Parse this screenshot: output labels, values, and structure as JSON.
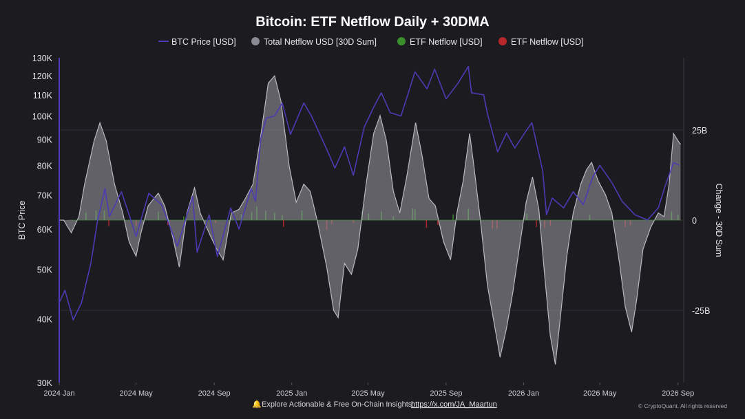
{
  "chart_data": {
    "type": "line",
    "title": "Bitcoin: ETF Netflow Daily + 30DMA",
    "legend": [
      {
        "name": "BTC Price [USD]",
        "color": "#4b3bb5",
        "marker": "line"
      },
      {
        "name": "Total Netflow USD [30D Sum]",
        "color": "#8a8a93",
        "marker": "dot"
      },
      {
        "name": "ETF Netflow [USD]",
        "color": "#3a8f2c",
        "marker": "dot"
      },
      {
        "name": "ETF Netflow [USD]",
        "color": "#b8272b",
        "marker": "dot"
      }
    ],
    "legend_position": "top-center",
    "y_left": {
      "label": "BTC Price",
      "scale": "log",
      "range": [
        30000,
        130000
      ],
      "ticks": [
        30000,
        40000,
        50000,
        60000,
        70000,
        80000,
        90000,
        100000,
        110000,
        120000,
        130000
      ],
      "tick_labels": [
        "30K",
        "40K",
        "50K",
        "60K",
        "70K",
        "80K",
        "90K",
        "100K",
        "110K",
        "120K",
        "130K"
      ]
    },
    "y_right": {
      "label": "Change - 30D Sum",
      "unit": "billion USD",
      "range": [
        -45,
        45
      ],
      "ticks": [
        25,
        0,
        -25
      ],
      "tick_labels": [
        "25B",
        "0",
        "-25B"
      ]
    },
    "x_axis": {
      "range": [
        "2024-01-01",
        "2026-09-10"
      ],
      "tick_labels": [
        "2024 Jan",
        "2024 May",
        "2024 Sep",
        "2025 Jan",
        "2025 May",
        "2025 Sep",
        "2026 Jan",
        "2026 May",
        "2026 Sep"
      ],
      "tick_dates": [
        "2024-01-01",
        "2024-05-01",
        "2024-09-01",
        "2025-01-01",
        "2025-05-01",
        "2025-09-01",
        "2026-01-01",
        "2026-05-01",
        "2026-09-01"
      ]
    },
    "grid": "horizontal at 25B, 0, -25B",
    "series": [
      {
        "name": "BTC Price [USD]",
        "axis": "left",
        "points": [
          [
            "2024-01-01",
            43000
          ],
          [
            "2024-01-10",
            45500
          ],
          [
            "2024-01-23",
            39800
          ],
          [
            "2024-02-05",
            43000
          ],
          [
            "2024-02-20",
            51500
          ],
          [
            "2024-03-01",
            62000
          ],
          [
            "2024-03-13",
            72000
          ],
          [
            "2024-03-20",
            63500
          ],
          [
            "2024-04-08",
            71000
          ],
          [
            "2024-04-20",
            64000
          ],
          [
            "2024-05-01",
            58000
          ],
          [
            "2024-05-21",
            70500
          ],
          [
            "2024-06-10",
            67000
          ],
          [
            "2024-07-05",
            55500
          ],
          [
            "2024-07-29",
            69500
          ],
          [
            "2024-08-05",
            54000
          ],
          [
            "2024-08-24",
            64000
          ],
          [
            "2024-09-06",
            53000
          ],
          [
            "2024-09-27",
            66000
          ],
          [
            "2024-10-10",
            60000
          ],
          [
            "2024-10-29",
            72000
          ],
          [
            "2024-11-05",
            68000
          ],
          [
            "2024-11-13",
            90000
          ],
          [
            "2024-11-22",
            99000
          ],
          [
            "2024-12-05",
            100000
          ],
          [
            "2024-12-17",
            106000
          ],
          [
            "2024-12-30",
            92000
          ],
          [
            "2025-01-20",
            106000
          ],
          [
            "2025-02-01",
            100000
          ],
          [
            "2025-02-25",
            86000
          ],
          [
            "2025-03-10",
            79000
          ],
          [
            "2025-03-25",
            87000
          ],
          [
            "2025-04-08",
            76500
          ],
          [
            "2025-04-25",
            95000
          ],
          [
            "2025-05-10",
            104000
          ],
          [
            "2025-05-22",
            111000
          ],
          [
            "2025-06-05",
            101500
          ],
          [
            "2025-06-22",
            100000
          ],
          [
            "2025-07-14",
            122000
          ],
          [
            "2025-08-02",
            113000
          ],
          [
            "2025-08-14",
            123500
          ],
          [
            "2025-09-01",
            108000
          ],
          [
            "2025-09-20",
            116000
          ],
          [
            "2025-10-06",
            125000
          ],
          [
            "2025-10-11",
            111000
          ],
          [
            "2025-10-30",
            110000
          ],
          [
            "2025-11-05",
            101000
          ],
          [
            "2025-11-21",
            85000
          ],
          [
            "2025-12-05",
            92500
          ],
          [
            "2025-12-18",
            86500
          ],
          [
            "2026-01-05",
            93500
          ],
          [
            "2026-01-14",
            97000
          ],
          [
            "2026-01-31",
            78000
          ],
          [
            "2026-02-06",
            64000
          ],
          [
            "2026-02-15",
            69000
          ],
          [
            "2026-03-05",
            66000
          ],
          [
            "2026-03-20",
            71000
          ],
          [
            "2026-04-05",
            67000
          ],
          [
            "2026-04-20",
            76000
          ],
          [
            "2026-05-01",
            80000
          ],
          [
            "2026-05-20",
            74000
          ],
          [
            "2026-06-05",
            68000
          ],
          [
            "2026-06-25",
            64000
          ],
          [
            "2026-07-15",
            62500
          ],
          [
            "2026-08-01",
            66000
          ],
          [
            "2026-08-12",
            73000
          ],
          [
            "2026-08-25",
            81000
          ],
          [
            "2026-09-03",
            80000
          ]
        ]
      },
      {
        "name": "Total Netflow USD [30D Sum]",
        "axis": "right",
        "unit": "billion USD",
        "points": [
          [
            "2024-01-01",
            0
          ],
          [
            "2024-01-08",
            0
          ],
          [
            "2024-01-20",
            -3.5
          ],
          [
            "2024-02-01",
            1
          ],
          [
            "2024-02-10",
            10
          ],
          [
            "2024-02-25",
            22
          ],
          [
            "2024-03-05",
            27
          ],
          [
            "2024-03-15",
            22
          ],
          [
            "2024-03-28",
            10
          ],
          [
            "2024-04-10",
            2
          ],
          [
            "2024-04-20",
            -6
          ],
          [
            "2024-05-01",
            -10
          ],
          [
            "2024-05-08",
            -4
          ],
          [
            "2024-05-20",
            4
          ],
          [
            "2024-06-05",
            7.5
          ],
          [
            "2024-06-15",
            4
          ],
          [
            "2024-06-28",
            -5
          ],
          [
            "2024-07-08",
            -13
          ],
          [
            "2024-07-20",
            2
          ],
          [
            "2024-08-01",
            9
          ],
          [
            "2024-08-10",
            2
          ],
          [
            "2024-08-25",
            -4
          ],
          [
            "2024-09-05",
            -8
          ],
          [
            "2024-09-15",
            -11
          ],
          [
            "2024-09-28",
            2
          ],
          [
            "2024-10-10",
            3
          ],
          [
            "2024-10-20",
            6
          ],
          [
            "2024-11-01",
            10
          ],
          [
            "2024-11-12",
            22
          ],
          [
            "2024-11-25",
            38
          ],
          [
            "2024-12-05",
            40
          ],
          [
            "2024-12-15",
            33
          ],
          [
            "2024-12-28",
            15
          ],
          [
            "2025-01-08",
            5
          ],
          [
            "2025-01-20",
            10
          ],
          [
            "2025-01-30",
            8
          ],
          [
            "2025-02-10",
            0
          ],
          [
            "2025-02-25",
            -13
          ],
          [
            "2025-03-08",
            -25
          ],
          [
            "2025-03-15",
            -27
          ],
          [
            "2025-03-25",
            -12
          ],
          [
            "2025-04-05",
            -15
          ],
          [
            "2025-04-15",
            -8
          ],
          [
            "2025-04-28",
            10
          ],
          [
            "2025-05-10",
            24
          ],
          [
            "2025-05-20",
            29
          ],
          [
            "2025-05-30",
            22
          ],
          [
            "2025-06-10",
            8
          ],
          [
            "2025-06-20",
            2
          ],
          [
            "2025-07-01",
            12
          ],
          [
            "2025-07-15",
            27
          ],
          [
            "2025-07-25",
            18
          ],
          [
            "2025-08-05",
            6
          ],
          [
            "2025-08-15",
            4
          ],
          [
            "2025-08-28",
            -6
          ],
          [
            "2025-09-08",
            -11
          ],
          [
            "2025-09-18",
            2
          ],
          [
            "2025-09-28",
            11
          ],
          [
            "2025-10-08",
            24
          ],
          [
            "2025-10-14",
            16
          ],
          [
            "2025-10-25",
            0
          ],
          [
            "2025-11-05",
            -18
          ],
          [
            "2025-11-18",
            -31
          ],
          [
            "2025-11-25",
            -38
          ],
          [
            "2025-12-05",
            -30
          ],
          [
            "2025-12-15",
            -20
          ],
          [
            "2025-12-25",
            -8
          ],
          [
            "2026-01-05",
            5
          ],
          [
            "2026-01-15",
            12
          ],
          [
            "2026-01-25",
            3
          ],
          [
            "2026-02-03",
            -15
          ],
          [
            "2026-02-12",
            -32
          ],
          [
            "2026-02-20",
            -40
          ],
          [
            "2026-03-01",
            -25
          ],
          [
            "2026-03-10",
            -10
          ],
          [
            "2026-03-20",
            2
          ],
          [
            "2026-04-01",
            10
          ],
          [
            "2026-04-10",
            14
          ],
          [
            "2026-04-18",
            16
          ],
          [
            "2026-04-28",
            11
          ],
          [
            "2026-05-10",
            7
          ],
          [
            "2026-05-20",
            2
          ],
          [
            "2026-06-01",
            -12
          ],
          [
            "2026-06-10",
            -24
          ],
          [
            "2026-06-20",
            -31
          ],
          [
            "2026-06-28",
            -22
          ],
          [
            "2026-07-08",
            -8
          ],
          [
            "2026-07-20",
            -2
          ],
          [
            "2026-08-01",
            2
          ],
          [
            "2026-08-10",
            1
          ],
          [
            "2026-08-18",
            10
          ],
          [
            "2026-08-25",
            24
          ],
          [
            "2026-09-01",
            22
          ],
          [
            "2026-09-05",
            21
          ]
        ]
      },
      {
        "name": "ETF Netflow [USD]",
        "axis": "right",
        "unit": "billion USD",
        "note": "daily inflows (green) and outflows (red)",
        "points": [
          [
            "2024-02-12",
            0.8
          ],
          [
            "2024-02-28",
            1.0
          ],
          [
            "2024-03-12",
            1.0
          ],
          [
            "2024-03-19",
            -0.6
          ],
          [
            "2024-05-01",
            -0.6
          ],
          [
            "2024-05-15",
            0.3
          ],
          [
            "2024-06-05",
            0.9
          ],
          [
            "2024-06-20",
            -0.5
          ],
          [
            "2024-07-15",
            0.4
          ],
          [
            "2024-08-26",
            -0.2
          ],
          [
            "2024-09-03",
            -0.3
          ],
          [
            "2024-09-27",
            0.5
          ],
          [
            "2024-10-14",
            0.6
          ],
          [
            "2024-10-30",
            0.9
          ],
          [
            "2024-11-07",
            1.4
          ],
          [
            "2024-11-21",
            1.0
          ],
          [
            "2024-12-05",
            0.8
          ],
          [
            "2024-12-17",
            0.5
          ],
          [
            "2024-12-19",
            -0.7
          ],
          [
            "2025-01-17",
            1.0
          ],
          [
            "2025-02-25",
            -1.0
          ],
          [
            "2025-03-05",
            -0.4
          ],
          [
            "2025-04-08",
            -0.3
          ],
          [
            "2025-04-22",
            0.9
          ],
          [
            "2025-05-02",
            0.7
          ],
          [
            "2025-05-22",
            0.9
          ],
          [
            "2025-06-10",
            0.4
          ],
          [
            "2025-07-10",
            1.2
          ],
          [
            "2025-07-14",
            1.1
          ],
          [
            "2025-08-01",
            -0.8
          ],
          [
            "2025-08-19",
            -0.5
          ],
          [
            "2025-09-12",
            0.6
          ],
          [
            "2025-10-06",
            1.2
          ],
          [
            "2025-11-13",
            -0.9
          ],
          [
            "2025-11-20",
            -0.9
          ],
          [
            "2026-01-06",
            0.7
          ],
          [
            "2026-01-21",
            -0.7
          ],
          [
            "2026-02-03",
            -0.8
          ],
          [
            "2026-02-12",
            -0.6
          ],
          [
            "2026-04-15",
            0.6
          ],
          [
            "2026-06-10",
            -0.7
          ],
          [
            "2026-06-18",
            -0.5
          ],
          [
            "2026-08-22",
            0.9
          ],
          [
            "2026-09-01",
            0.6
          ]
        ]
      }
    ]
  },
  "footer": {
    "prefix": "Explore Actionable & Free On-Chain Insights:",
    "link_text": "https://x.com/JA_Maartun",
    "credit": "© CryptoQuant. All rights reserved"
  }
}
